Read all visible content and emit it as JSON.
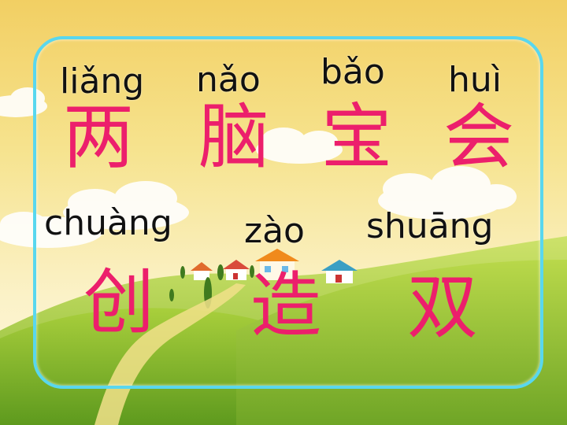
{
  "lesson": {
    "row1": [
      {
        "pinyin": "liǎng",
        "hanzi": "两"
      },
      {
        "pinyin": "nǎo",
        "hanzi": "脑"
      },
      {
        "pinyin": "bǎo",
        "hanzi": "宝"
      },
      {
        "pinyin": "huì",
        "hanzi": "会"
      }
    ],
    "row2": [
      {
        "pinyin": "chuàng",
        "hanzi": "创"
      },
      {
        "pinyin": "zào",
        "hanzi": "造"
      },
      {
        "pinyin": "shuāng",
        "hanzi": "双"
      }
    ]
  },
  "colors": {
    "pinyin": "#111111",
    "hanzi": "#ec1f6c",
    "frame": "#59d7ee"
  }
}
